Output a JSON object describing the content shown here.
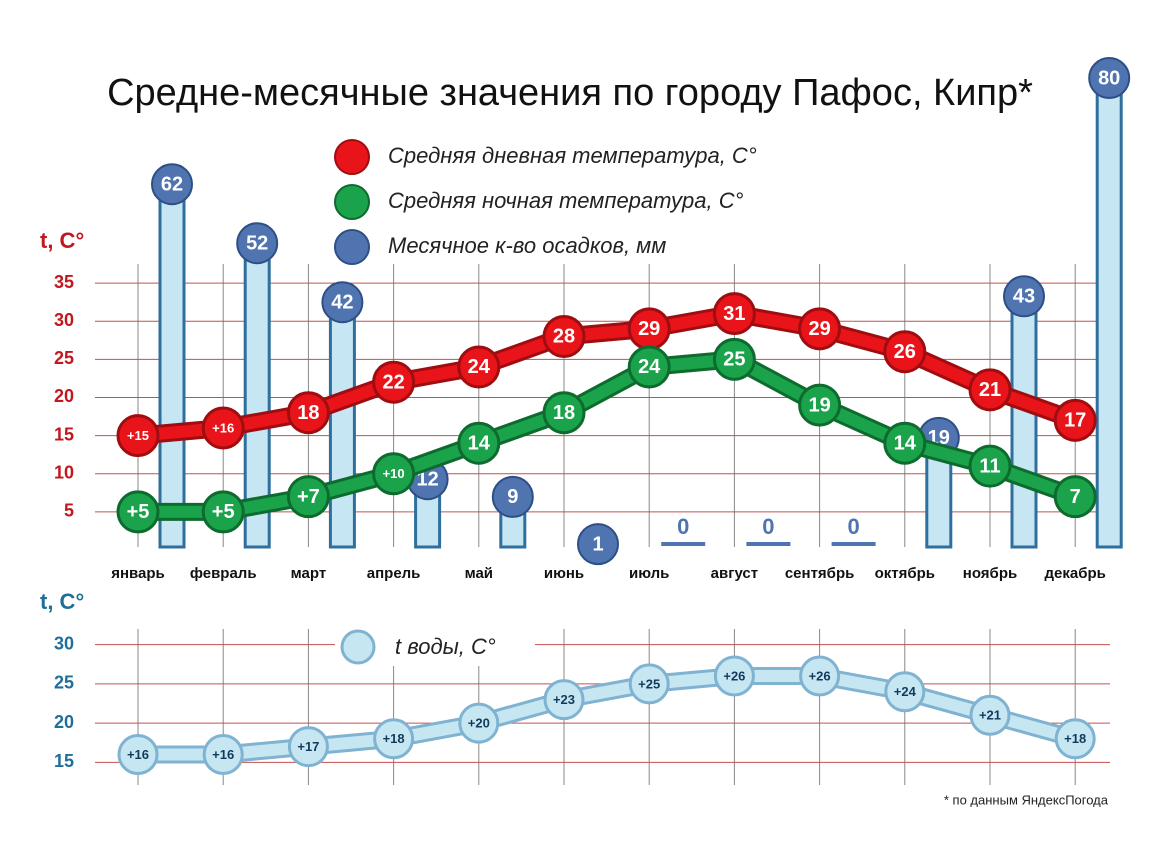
{
  "chart_data": [
    {
      "type": "line",
      "title": "Средне-месячные значения по городу Пафос, Кипр*",
      "ylabel": "t, C°",
      "categories": [
        "январь",
        "февраль",
        "март",
        "апрель",
        "май",
        "июнь",
        "июль",
        "август",
        "сентябрь",
        "октябрь",
        "ноябрь",
        "декабрь"
      ],
      "ylim": [
        0,
        37.5
      ],
      "yticks": [
        5,
        10,
        15,
        20,
        25,
        30,
        35
      ],
      "y2lim": [
        0,
        80
      ],
      "grid": true,
      "series": [
        {
          "name": "Средняя дневная температура, С°",
          "color": "#e8141a",
          "values": [
            15,
            16,
            18,
            22,
            24,
            28,
            29,
            31,
            29,
            26,
            21,
            17
          ],
          "value_labels": [
            "+15",
            "+16",
            "18",
            "22",
            "24",
            "28",
            "29",
            "31",
            "29",
            "26",
            "21",
            "17"
          ]
        },
        {
          "name": "Средняя ночная температура, С°",
          "color": "#1ba34c",
          "values": [
            5,
            5,
            7,
            10,
            14,
            18,
            24,
            25,
            19,
            14,
            11,
            7
          ],
          "value_labels": [
            "+5",
            "+5",
            "+7",
            "+10",
            "14",
            "18",
            "24",
            "25",
            "19",
            "14",
            "11",
            "7"
          ]
        },
        {
          "name": "Месячное к-во осадков, мм",
          "type": "bar",
          "axis": "y2",
          "color": "#4f74b0",
          "values": [
            62,
            52,
            42,
            12,
            9,
            1,
            0,
            0,
            0,
            19,
            43,
            80
          ]
        }
      ]
    },
    {
      "type": "line",
      "ylabel": "t, C°",
      "ylim": [
        13,
        32
      ],
      "yticks": [
        15,
        20,
        25,
        30
      ],
      "grid": true,
      "series": [
        {
          "name": "t воды, С°",
          "color": "#c6e6f2",
          "values": [
            16,
            16,
            17,
            18,
            20,
            23,
            25,
            26,
            26,
            24,
            21,
            18
          ],
          "value_labels": [
            "+16",
            "+16",
            "+17",
            "+18",
            "+20",
            "+23",
            "+25",
            "+26",
            "+26",
            "+24",
            "+21",
            "+18"
          ]
        }
      ],
      "annotations": [
        "* по данным ЯндексПогода"
      ]
    }
  ]
}
